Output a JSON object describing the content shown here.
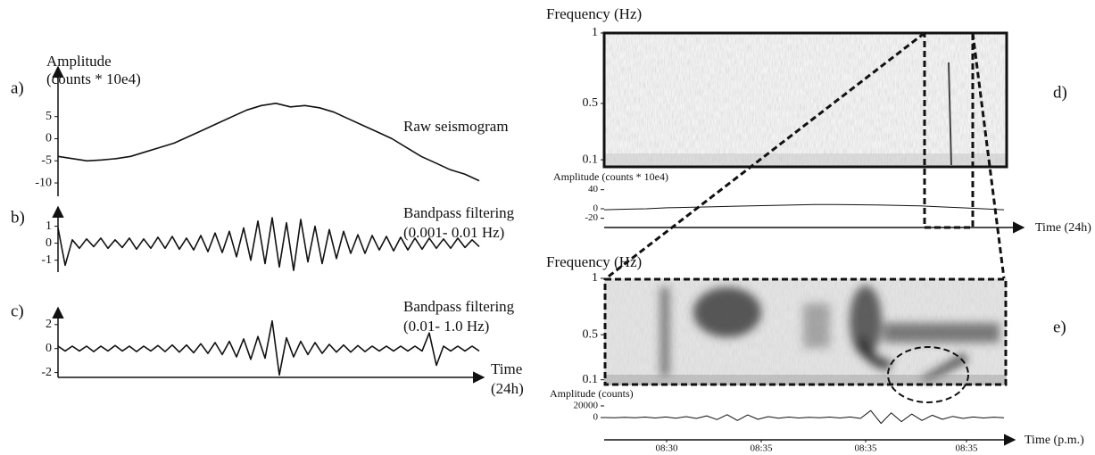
{
  "chart_data": [
    {
      "type": "line",
      "panel_label": "a)",
      "y_label_lines": [
        "Amplitude",
        "(counts * 10e4)"
      ],
      "annotation": "Raw seismogram",
      "ylim": [
        -11,
        12
      ],
      "yticks": [
        5,
        0,
        -5,
        -10
      ],
      "color": "#111111",
      "values": [
        -4,
        -4.5,
        -5,
        -4.8,
        -4.5,
        -4,
        -3,
        -2,
        -1,
        0.5,
        2,
        3.5,
        5,
        6.5,
        7.5,
        8,
        7.2,
        7.5,
        7,
        6,
        4.5,
        3,
        1.5,
        0,
        -2,
        -4,
        -5.5,
        -7,
        -8,
        -9.5
      ]
    },
    {
      "type": "line",
      "panel_label": "b)",
      "annotation_lines": [
        "Bandpass filtering",
        "(0.001- 0.01 Hz)"
      ],
      "ylim": [
        -1.7,
        1.5
      ],
      "yticks": [
        1,
        0,
        -1
      ],
      "color": "#111111",
      "values": [
        0.9,
        -1.3,
        0.2,
        -0.3,
        0.25,
        -0.2,
        0.3,
        -0.3,
        0.2,
        -0.25,
        0.3,
        -0.35,
        0.25,
        -0.3,
        0.35,
        -0.3,
        0.4,
        -0.35,
        0.3,
        -0.4,
        0.45,
        -0.5,
        0.6,
        -0.55,
        0.7,
        -0.8,
        0.9,
        -1,
        1.3,
        -1.2,
        1.5,
        -1.4,
        1.2,
        -1.6,
        1.4,
        -1.1,
        1,
        -1.2,
        0.8,
        -0.9,
        0.7,
        -0.6,
        0.5,
        -0.6,
        0.45,
        -0.4,
        0.4,
        -0.45,
        0.35,
        -0.4,
        0.3,
        -0.35,
        0.3,
        -0.3,
        0.25,
        -0.3,
        0.3,
        -0.25,
        0.2,
        -0.2
      ]
    },
    {
      "type": "line",
      "panel_label": "c)",
      "annotation_lines": [
        "Bandpass filtering",
        "(0.01- 1.0 Hz)"
      ],
      "x_label_lines": [
        "Time",
        "(24h)"
      ],
      "ylim": [
        -2.4,
        2.8
      ],
      "yticks": [
        2,
        0,
        -2
      ],
      "color": "#111111",
      "values": [
        0.2,
        -0.2,
        0.2,
        -0.2,
        0.2,
        -0.25,
        0.2,
        -0.2,
        0.25,
        -0.2,
        0.2,
        -0.25,
        0.2,
        -0.2,
        0.25,
        -0.25,
        0.3,
        -0.3,
        0.3,
        -0.35,
        0.4,
        -0.4,
        0.5,
        -0.5,
        0.6,
        -0.7,
        0.8,
        -0.9,
        1,
        -0.8,
        2.3,
        -2.2,
        0.9,
        -0.7,
        0.6,
        -0.5,
        0.5,
        -0.4,
        0.35,
        -0.3,
        0.3,
        -0.3,
        0.25,
        -0.25,
        0.2,
        -0.2,
        0.2,
        -0.2,
        0.2,
        -0.2,
        0.2,
        -0.2,
        1.3,
        -1.4,
        0.2,
        -0.2,
        0.2,
        -0.2,
        0.2,
        -0.2
      ]
    },
    {
      "type": "spectrogram",
      "panel_label": "d)",
      "y_label": "Frequency (Hz)",
      "ylim": [
        0.05,
        1
      ],
      "yticks": [
        1,
        0.5,
        0.1
      ]
    },
    {
      "type": "line",
      "y_label": "Amplitude (counts * 10e4)",
      "x_label": "Time (24h)",
      "ylim": [
        -30,
        45
      ],
      "yticks": [
        40,
        0,
        -20
      ],
      "color": "#111111",
      "values": [
        -2,
        -1,
        0,
        2,
        3,
        4,
        5,
        6,
        7,
        8,
        9,
        9,
        8.5,
        8,
        7,
        6,
        4,
        2,
        0,
        -2
      ]
    },
    {
      "type": "spectrogram",
      "panel_label": "e)",
      "y_label": "Frequency (Hz)",
      "ylim": [
        0.05,
        1
      ],
      "yticks": [
        1,
        0.5,
        0.1
      ]
    },
    {
      "type": "line",
      "y_label": "Amplitude (counts)",
      "x_label": "Time (p.m.)",
      "xtick_labels": [
        "08:30",
        "08:35",
        "08:35",
        "08:35"
      ],
      "ylim": [
        -26000,
        27600
      ],
      "yticks": [
        20000,
        0
      ],
      "color": "#111111",
      "values": [
        0,
        -500,
        500,
        -500,
        800,
        -800,
        1000,
        -1000,
        1500,
        -1500,
        3000,
        -3500,
        5000,
        -5000,
        4500,
        -3000,
        1500,
        -1000,
        800,
        -800,
        500,
        -500,
        800,
        -800,
        1000,
        -1500,
        12000,
        -10000,
        8000,
        -7000,
        6000,
        -5000,
        4000,
        -3000,
        2000,
        -1500,
        1000,
        -800,
        600,
        -500
      ]
    }
  ]
}
